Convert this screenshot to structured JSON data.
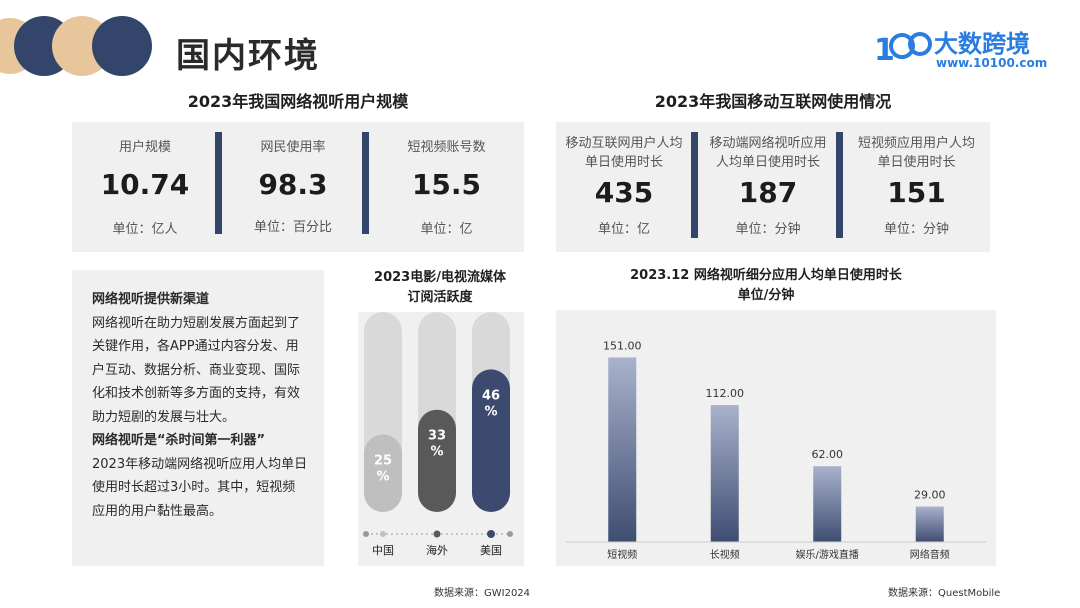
{
  "page": {
    "title": "国内环境"
  },
  "logo": {
    "name": "大数跨境",
    "url": "www.10100.com",
    "mark": "100"
  },
  "left_section": {
    "title": "2023年我国网络视听用户规模",
    "stats": [
      {
        "label": "用户规模",
        "value": "10.74",
        "unit": "单位：亿人"
      },
      {
        "label": "网民使用率",
        "value": "98.3",
        "unit": "单位：百分比"
      },
      {
        "label": "短视频账号数",
        "value": "15.5",
        "unit": "单位：亿"
      }
    ]
  },
  "right_section": {
    "title": "2023年我国移动互联网使用情况",
    "stats": [
      {
        "label_line1": "移动互联网用户人均",
        "label_line2": "单日使用时长",
        "value": "435",
        "unit": "单位：亿"
      },
      {
        "label_line1": "移动端网络视听应用",
        "label_line2": "人均单日使用时长",
        "value": "187",
        "unit": "单位：分钟"
      },
      {
        "label_line1": "短视频应用用户人均",
        "label_line2": "单日使用时长",
        "value": "151",
        "unit": "单位：分钟"
      }
    ]
  },
  "text_panel": {
    "heading1": "网络视听提供新渠道",
    "body1": "网络视听在助力短剧发展方面起到了关键作用，各APP通过内容分发、用户互动、数据分析、商业变现、国际化和技术创新等多方面的支持，有效助力短剧的发展与壮大。",
    "heading2": "网络视听是“杀时间第一利器”",
    "body2": "2023年移动端网络视听应用人均单日使用时长超过3小时。其中，短视频应用的用户黏性最高。"
  },
  "colors": {
    "accent": "#34456b",
    "panel": "#f0f0f0",
    "logo": "#2a7de0",
    "gold": "#e8c69b"
  },
  "chart_data": [
    {
      "type": "bar",
      "title": "2023电影/电视流媒体订阅活跃度",
      "title_line1": "2023电影/电视流媒体",
      "title_line2": "订阅活跃度",
      "categories": [
        "中国",
        "海外",
        "美国"
      ],
      "values": [
        25,
        33,
        46
      ],
      "value_labels": [
        [
          "25",
          "%"
        ],
        [
          "33",
          "%"
        ],
        [
          "46",
          "%"
        ]
      ],
      "bar_colors": [
        "#bfbfbf",
        "#595959",
        "#3b4a6e"
      ],
      "ylim": [
        0,
        100
      ],
      "source": "数据来源：GWI2024"
    },
    {
      "type": "bar",
      "title": "2023.12 网络视听细分应用人均单日使用时长",
      "subtitle": "单位/分钟",
      "categories": [
        "短视频",
        "长视频",
        "娱乐/游戏直播",
        "网络音频"
      ],
      "values": [
        151.0,
        112.0,
        62.0,
        29.0
      ],
      "value_labels": [
        "151.00",
        "112.00",
        "62.00",
        "29.00"
      ],
      "ylim": [
        0,
        180
      ],
      "source": "数据来源：QuestMobile"
    }
  ]
}
